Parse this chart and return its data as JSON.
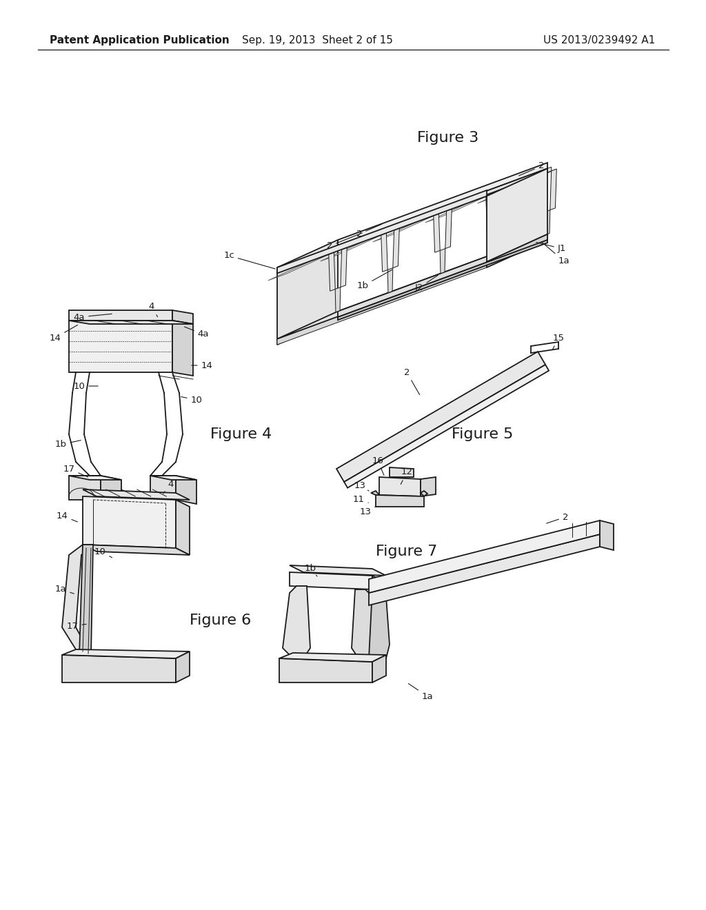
{
  "bg_color": "#ffffff",
  "header_left": "Patent Application Publication",
  "header_center": "Sep. 19, 2013  Sheet 2 of 15",
  "header_right": "US 2013/0239492 A1",
  "lc": "#1a1a1a",
  "lw": 1.3,
  "tlw": 0.7,
  "lfs": 9.5,
  "fig_label_fs": 16
}
